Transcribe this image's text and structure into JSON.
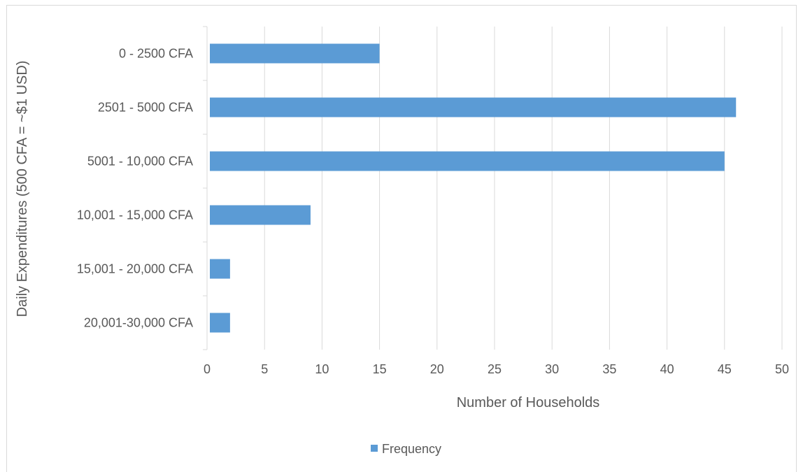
{
  "chart_data": {
    "type": "bar",
    "orientation": "horizontal",
    "categories": [
      "0 - 2500 CFA",
      "2501 - 5000 CFA",
      "5001 - 10,000 CFA",
      "10,001 - 15,000 CFA",
      "15,001 - 20,000 CFA",
      "20,001-30,000 CFA"
    ],
    "series": [
      {
        "name": "Frequency",
        "values": [
          15,
          46,
          45,
          9,
          2,
          2
        ],
        "color": "#5b9bd5"
      }
    ],
    "xlabel": "Number of Households",
    "ylabel": "Daily Expenditures (500 CFA = ~$1 USD)",
    "xlim": [
      0,
      50
    ],
    "xticks": [
      0,
      5,
      10,
      15,
      20,
      25,
      30,
      35,
      40,
      45,
      50
    ],
    "grid": "vertical",
    "legend": "bottom",
    "colors": {
      "grid": "#d9d9d9",
      "text": "#595959"
    }
  }
}
